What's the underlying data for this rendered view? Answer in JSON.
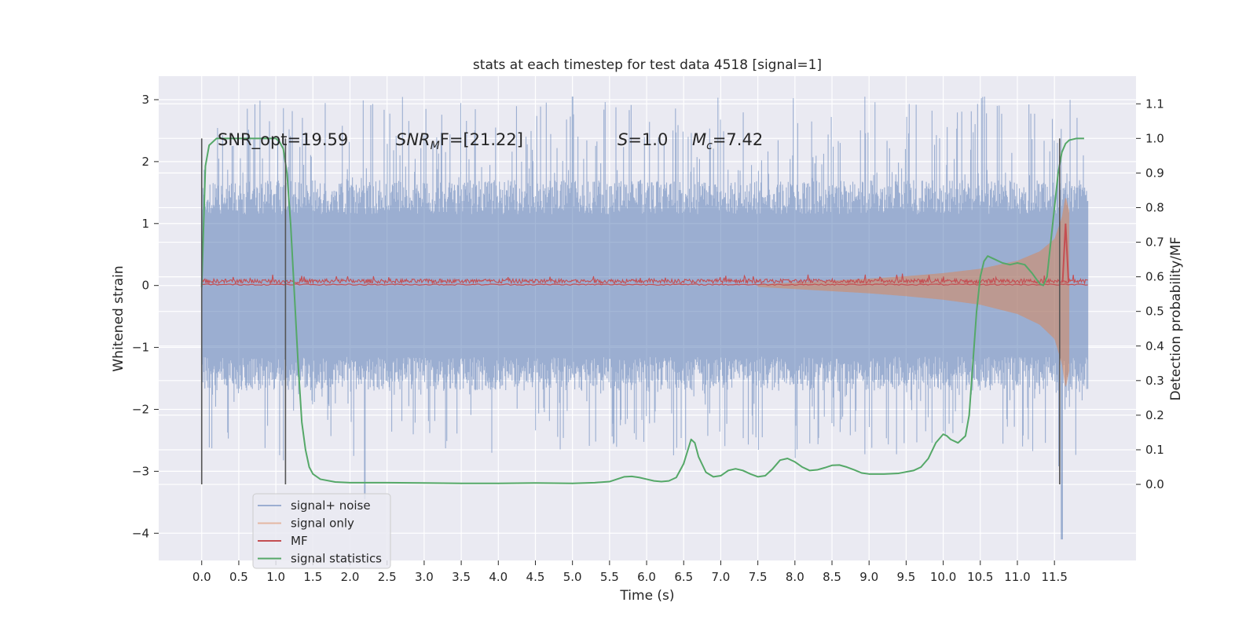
{
  "chart_data": {
    "type": "line",
    "title": "stats at each timestep for test data 4518 [signal=1]",
    "xlabel": "Time (s)",
    "ylabel": "Whitened strain",
    "y2label": "Detection probability/MF",
    "xlim": [
      -0.58,
      12.6
    ],
    "ylim": [
      -4.44,
      3.38
    ],
    "y2lim": [
      -0.22,
      1.18
    ],
    "x_ticks": [
      0.0,
      0.5,
      1.0,
      1.5,
      2.0,
      2.5,
      3.0,
      3.5,
      4.0,
      4.5,
      5.0,
      5.5,
      6.0,
      6.5,
      7.0,
      7.5,
      8.0,
      8.5,
      9.0,
      9.5,
      10.0,
      10.5,
      11.0,
      11.5
    ],
    "x_tick_labels": [
      "0.0",
      "0.5",
      "1.0",
      "1.5",
      "2.0",
      "2.5",
      "3.0",
      "3.5",
      "4.0",
      "4.5",
      "5.0",
      "5.5",
      "6.0",
      "6.5",
      "7.0",
      "7.5",
      "8.0",
      "8.5",
      "9.0",
      "9.5",
      "10.0",
      "10.5",
      "11.0",
      "11.5"
    ],
    "y_ticks": [
      -4,
      -3,
      -2,
      -1,
      0,
      1,
      2,
      3
    ],
    "y_tick_labels": [
      "−4",
      "−3",
      "−2",
      "−1",
      "0",
      "1",
      "2",
      "3"
    ],
    "y2_ticks": [
      0.0,
      0.1,
      0.2,
      0.3,
      0.4,
      0.5,
      0.6,
      0.7,
      0.8,
      0.9,
      1.0,
      1.1
    ],
    "y2_tick_labels": [
      "0.0",
      "0.1",
      "0.2",
      "0.3",
      "0.4",
      "0.5",
      "0.6",
      "0.7",
      "0.8",
      "0.9",
      "1.0",
      "1.1"
    ],
    "grid": true,
    "legend_position": "bottom-left",
    "annotations": {
      "snr_opt": "SNR_opt=19.59",
      "snr_mf_sym": "SNR",
      "snr_mf_sub": "M",
      "snr_mf_rest": "F=[21.22]",
      "s_sym": "S",
      "s_rest": "=1.0",
      "mc_sym": "M",
      "mc_sub": "c",
      "mc_rest": "=7.42"
    },
    "vertical_markers": [
      {
        "x": 0.0,
        "ymin": 0.0,
        "ymax": 1.0
      },
      {
        "x": 1.13,
        "ymin": 0.0,
        "ymax": 1.0
      },
      {
        "x": 11.57,
        "ymin": 0.0,
        "ymax": 1.0
      }
    ],
    "noise_t_end": 11.95,
    "noise_band_base": 1.15,
    "noise_peak_max": 3.05,
    "noise_peak_min": -4.1,
    "signal_envelope": {
      "t": [
        7.5,
        8.0,
        8.5,
        9.0,
        9.5,
        10.0,
        10.5,
        11.0,
        11.3,
        11.5,
        11.6,
        11.65,
        11.7
      ],
      "amp": [
        0.02,
        0.05,
        0.08,
        0.11,
        0.15,
        0.2,
        0.27,
        0.4,
        0.55,
        0.75,
        1.1,
        1.45,
        1.2
      ]
    },
    "mf_peak": {
      "x": 11.65,
      "y": 0.72
    },
    "series": [
      {
        "name": "signal+ noise",
        "color": "#4c72b0",
        "alpha": 0.5
      },
      {
        "name": "signal only",
        "color": "#dd8452",
        "alpha": 0.5
      },
      {
        "name": "MF",
        "color": "#c44e52"
      },
      {
        "name": "signal statistics",
        "color": "#55a868",
        "axis": "y2",
        "x": [
          0.0,
          0.05,
          0.1,
          0.2,
          0.3,
          0.5,
          0.7,
          0.9,
          1.0,
          1.05,
          1.1,
          1.15,
          1.2,
          1.25,
          1.3,
          1.35,
          1.4,
          1.45,
          1.5,
          1.6,
          1.8,
          2.0,
          2.5,
          3.0,
          3.5,
          4.0,
          4.5,
          5.0,
          5.3,
          5.5,
          5.6,
          5.7,
          5.8,
          5.9,
          6.0,
          6.1,
          6.2,
          6.3,
          6.4,
          6.5,
          6.6,
          6.65,
          6.7,
          6.8,
          6.9,
          7.0,
          7.1,
          7.2,
          7.3,
          7.4,
          7.5,
          7.6,
          7.7,
          7.8,
          7.9,
          8.0,
          8.1,
          8.2,
          8.3,
          8.4,
          8.5,
          8.6,
          8.7,
          8.8,
          8.9,
          9.0,
          9.2,
          9.4,
          9.6,
          9.7,
          9.8,
          9.9,
          10.0,
          10.05,
          10.1,
          10.2,
          10.3,
          10.35,
          10.4,
          10.45,
          10.5,
          10.55,
          10.6,
          10.7,
          10.8,
          10.9,
          11.0,
          11.1,
          11.2,
          11.3,
          11.35,
          11.4,
          11.45,
          11.5,
          11.55,
          11.6,
          11.65,
          11.7,
          11.8,
          11.9
        ],
        "y": [
          0.57,
          0.92,
          0.98,
          1.0,
          1.0,
          1.0,
          1.0,
          1.0,
          1.0,
          0.99,
          0.97,
          0.9,
          0.75,
          0.55,
          0.35,
          0.18,
          0.1,
          0.05,
          0.03,
          0.015,
          0.007,
          0.005,
          0.005,
          0.004,
          0.003,
          0.003,
          0.004,
          0.003,
          0.005,
          0.008,
          0.015,
          0.022,
          0.023,
          0.02,
          0.015,
          0.01,
          0.008,
          0.01,
          0.02,
          0.06,
          0.13,
          0.12,
          0.08,
          0.035,
          0.022,
          0.025,
          0.04,
          0.045,
          0.04,
          0.03,
          0.022,
          0.025,
          0.045,
          0.07,
          0.075,
          0.065,
          0.05,
          0.04,
          0.042,
          0.048,
          0.055,
          0.056,
          0.05,
          0.042,
          0.033,
          0.03,
          0.03,
          0.032,
          0.04,
          0.05,
          0.075,
          0.12,
          0.145,
          0.14,
          0.13,
          0.12,
          0.14,
          0.2,
          0.35,
          0.5,
          0.6,
          0.645,
          0.66,
          0.65,
          0.64,
          0.635,
          0.64,
          0.635,
          0.61,
          0.58,
          0.575,
          0.6,
          0.7,
          0.8,
          0.9,
          0.96,
          0.985,
          0.995,
          1.0,
          1.0
        ]
      }
    ]
  }
}
